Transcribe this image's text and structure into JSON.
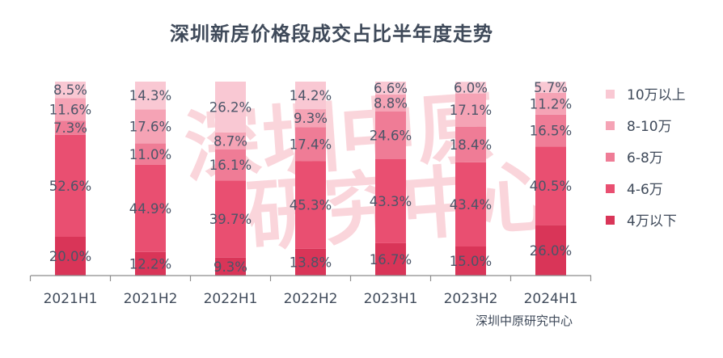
{
  "title": "深圳新房价格段成交占比半年度走势",
  "source": "深圳中原研究中心",
  "watermark": [
    "深圳中原",
    "研究中心"
  ],
  "colors": {
    "10万以上": "#f9c8d3",
    "8-10万": "#f5a3b5",
    "6-8万": "#ef7c96",
    "4-6万": "#e94f71",
    "4万以下": "#d93558"
  },
  "chart_data": {
    "type": "bar",
    "stacked": true,
    "categories": [
      "2021H1",
      "2021H2",
      "2022H1",
      "2022H2",
      "2023H1",
      "2023H2",
      "2024H1"
    ],
    "series": [
      {
        "name": "4万以下",
        "values": [
          20.0,
          12.2,
          9.3,
          13.8,
          16.7,
          15.0,
          26.0
        ],
        "labels": [
          "20.0%",
          "12.2%",
          "9.3%",
          "13.8%",
          "16.7%",
          "15.0%",
          "26.0%"
        ]
      },
      {
        "name": "4-6万",
        "values": [
          52.6,
          44.9,
          39.7,
          45.3,
          43.3,
          43.4,
          40.5
        ],
        "labels": [
          "52.6%",
          "44.9%",
          "39.7%",
          "45.3%",
          "43.3%",
          "43.4%",
          "40.5%"
        ]
      },
      {
        "name": "6-8万",
        "values": [
          7.3,
          11.0,
          16.1,
          17.4,
          24.6,
          18.4,
          16.5
        ],
        "labels": [
          "7.3%",
          "11.0%",
          "16.1%",
          "17.4%",
          "24.6%",
          "18.4%",
          "16.5%"
        ]
      },
      {
        "name": "8-10万",
        "values": [
          11.6,
          17.6,
          8.7,
          9.3,
          8.8,
          17.1,
          11.2
        ],
        "labels": [
          "11.6%",
          "17.6%",
          "8.7%",
          "9.3%",
          "8.8%",
          "17.1%",
          "11.2%"
        ]
      },
      {
        "name": "10万以上",
        "values": [
          8.5,
          14.3,
          26.2,
          14.2,
          6.6,
          6.0,
          5.7
        ],
        "labels": [
          "8.5%",
          "14.3%",
          "26.2%",
          "14.2%",
          "6.6%",
          "6.0%",
          "5.7%"
        ]
      }
    ],
    "ylim": [
      0,
      100
    ],
    "legend": "right",
    "legend_order": [
      "10万以上",
      "8-10万",
      "6-8万",
      "4-6万",
      "4万以下"
    ],
    "grid": false
  }
}
